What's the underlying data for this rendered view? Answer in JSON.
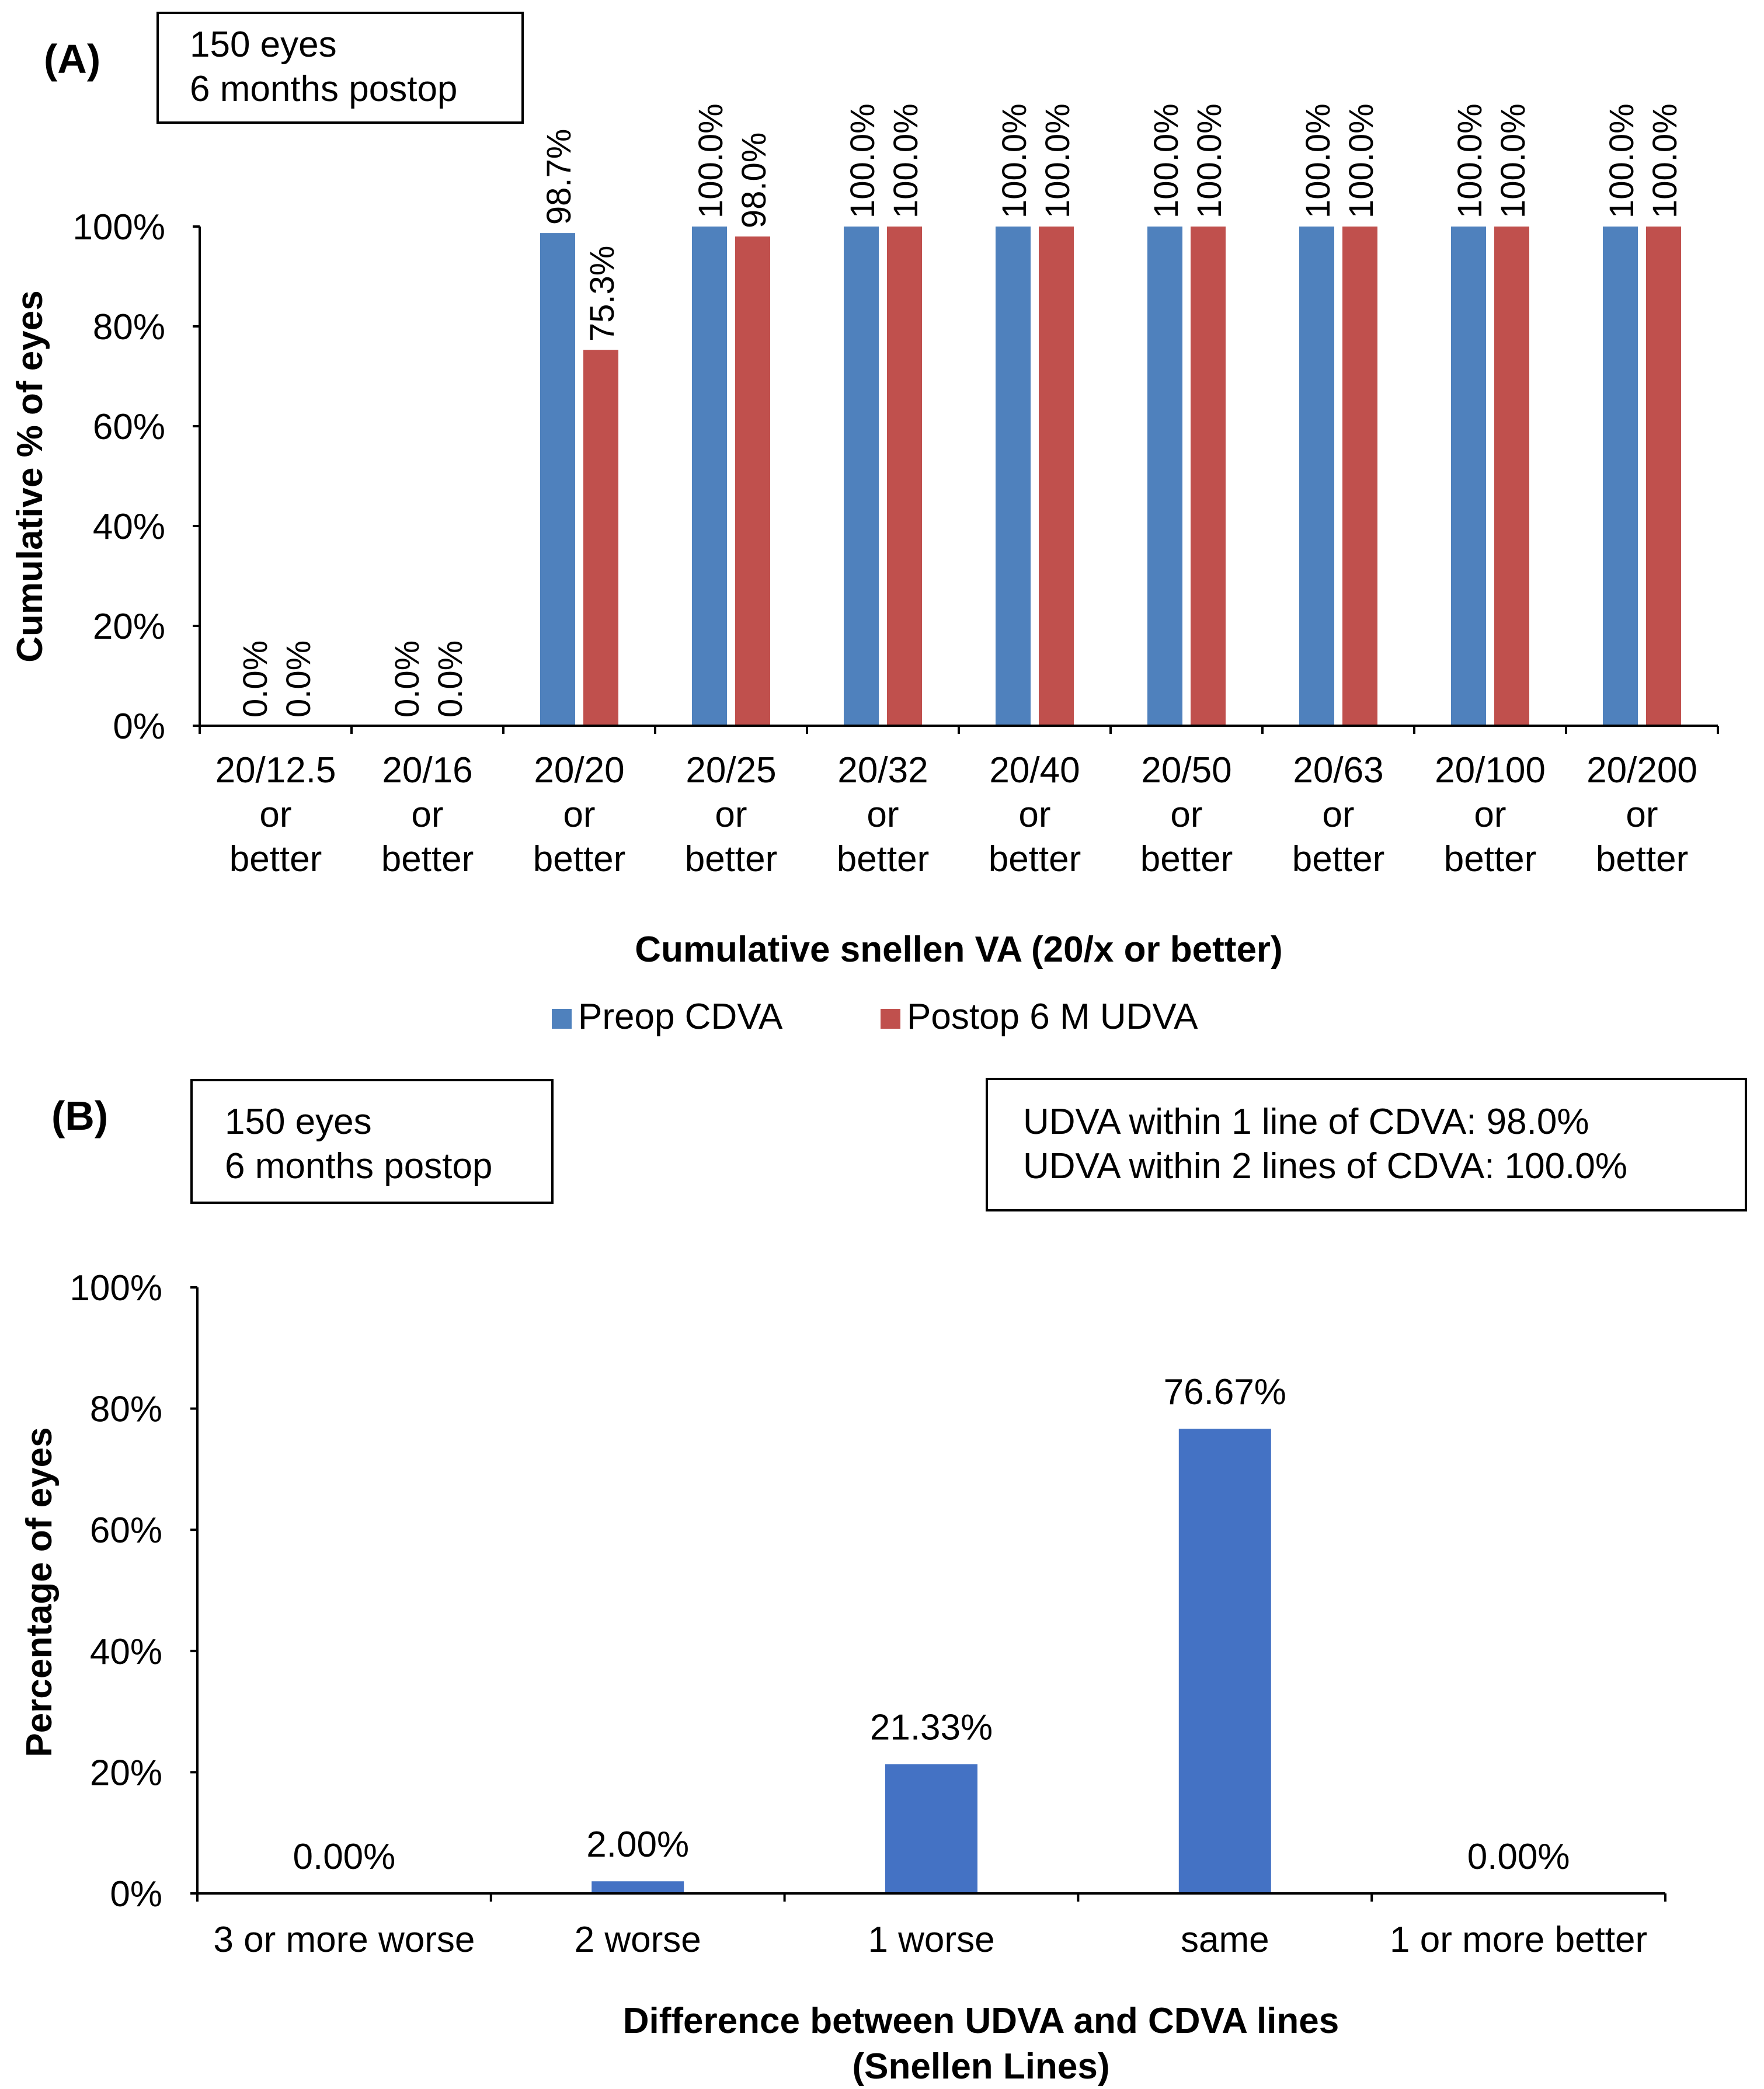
{
  "colors": {
    "preop": "#4f81bd",
    "postop": "#c0504d",
    "single": "#4472c4",
    "axis": "#000000",
    "text": "#000000",
    "background": "#ffffff"
  },
  "chart_data": [
    {
      "panel_label": "(A)",
      "type": "bar",
      "info_box": [
        "150 eyes",
        "6 months postop"
      ],
      "categories": [
        [
          "20/12.5",
          "or",
          "better"
        ],
        [
          "20/16",
          "or",
          "better"
        ],
        [
          "20/20",
          "or",
          "better"
        ],
        [
          "20/25",
          "or",
          "better"
        ],
        [
          "20/32",
          "or",
          "better"
        ],
        [
          "20/40",
          "or",
          "better"
        ],
        [
          "20/50",
          "or",
          "better"
        ],
        [
          "20/63",
          "or",
          "better"
        ],
        [
          "20/100",
          "or",
          "better"
        ],
        [
          "20/200",
          "or",
          "better"
        ]
      ],
      "series": [
        {
          "name": "Preop CDVA",
          "values": [
            0.0,
            0.0,
            98.7,
            100.0,
            100.0,
            100.0,
            100.0,
            100.0,
            100.0,
            100.0
          ],
          "labels": [
            "0.0%",
            "0.0%",
            "98.7%",
            "100.0%",
            "100.0%",
            "100.0%",
            "100.0%",
            "100.0%",
            "100.0%",
            "100.0%"
          ]
        },
        {
          "name": "Postop 6 M UDVA",
          "values": [
            0.0,
            0.0,
            75.3,
            98.0,
            100.0,
            100.0,
            100.0,
            100.0,
            100.0,
            100.0
          ],
          "labels": [
            "0.0%",
            "0.0%",
            "75.3%",
            "98.0%",
            "100.0%",
            "100.0%",
            "100.0%",
            "100.0%",
            "100.0%",
            "100.0%"
          ]
        }
      ],
      "ylim": [
        0,
        100
      ],
      "yticks": [
        "0%",
        "20%",
        "40%",
        "60%",
        "80%",
        "100%"
      ],
      "xlabel": "Cumulative snellen VA (20/x or better)",
      "ylabel": "Cumulative % of eyes",
      "legend_position": "bottom"
    },
    {
      "panel_label": "(B)",
      "type": "bar",
      "info_box": [
        "150 eyes",
        "6 months postop"
      ],
      "stats_box": [
        "UDVA within 1 line of CDVA: 98.0%",
        "UDVA within 2 lines of CDVA: 100.0%"
      ],
      "categories": [
        "3 or more worse",
        "2 worse",
        "1 worse",
        "same",
        "1 or more better"
      ],
      "values": [
        0.0,
        2.0,
        21.33,
        76.67,
        0.0
      ],
      "labels": [
        "0.00%",
        "2.00%",
        "21.33%",
        "76.67%",
        "0.00%"
      ],
      "ylim": [
        0,
        100
      ],
      "yticks": [
        "0%",
        "20%",
        "40%",
        "60%",
        "80%",
        "100%"
      ],
      "xlabel": [
        "Difference between UDVA and CDVA lines",
        "(Snellen Lines)"
      ],
      "ylabel": "Percentage of eyes"
    }
  ]
}
